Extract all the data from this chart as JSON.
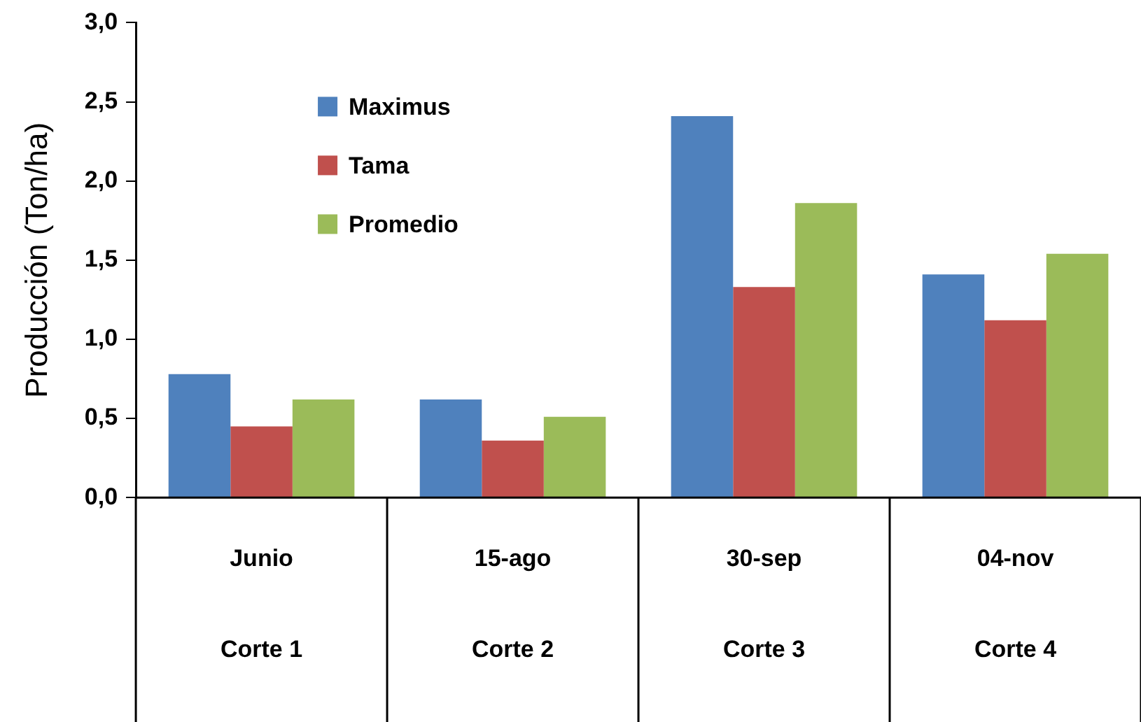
{
  "chart_data": {
    "type": "bar",
    "ylabel": "Producción (Ton/ha)",
    "categories": [
      "Junio",
      "15-ago",
      "30-sep",
      "04-nov"
    ],
    "series": [
      {
        "name": "Maximus",
        "color": "#4f81bd",
        "values": [
          0.78,
          0.62,
          2.41,
          1.41
        ]
      },
      {
        "name": "Tama",
        "color": "#c0504d",
        "values": [
          0.45,
          0.36,
          1.33,
          1.12
        ]
      },
      {
        "name": "Promedio",
        "color": "#9bbb59",
        "values": [
          0.62,
          0.51,
          1.86,
          1.54
        ]
      }
    ],
    "ylim": [
      0,
      3
    ],
    "yticks": [
      {
        "value": 0,
        "label": "0,0"
      },
      {
        "value": 0.5,
        "label": "0,5"
      },
      {
        "value": 1,
        "label": "1,0"
      },
      {
        "value": 1.5,
        "label": "1,5"
      },
      {
        "value": 2,
        "label": "2,0"
      },
      {
        "value": 2.5,
        "label": "2,5"
      },
      {
        "value": 3,
        "label": "3,0"
      }
    ],
    "grid": false,
    "legend": "top left",
    "annotations": [
      "Corte 1",
      "Corte 2",
      "Corte 3",
      "Corte 4"
    ]
  }
}
